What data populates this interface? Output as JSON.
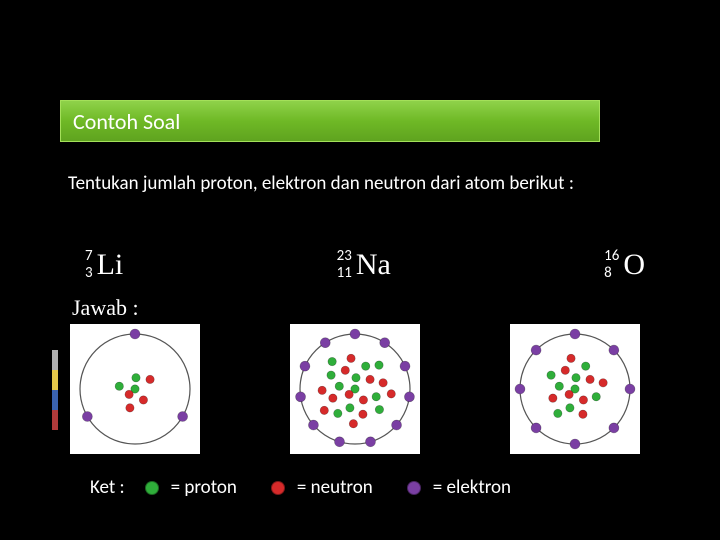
{
  "colors": {
    "page_bg": "#000000",
    "title_bar_gradient_top": "#8fd24a",
    "title_bar_gradient_mid": "#6fb926",
    "title_bar_gradient_bot": "#5fa31f",
    "text": "#ffffff",
    "proton": "#2fae3a",
    "neutron": "#d62a2a",
    "electron": "#7a3fa3",
    "shell_stroke": "#555555",
    "diagram_bg": "#ffffff",
    "strip": [
      "#b0b0b0",
      "#e5c74a",
      "#3a63b0",
      "#b03a3a"
    ]
  },
  "title": "Contoh Soal",
  "question": "Tentukan jumlah proton, elektron dan neutron dari atom berikut :",
  "answer_label": "Jawab :",
  "atoms": [
    {
      "symbol": "Li",
      "mass": "7",
      "atomic": "3",
      "protons": 3,
      "neutrons": 4,
      "shells": [
        2,
        1
      ]
    },
    {
      "symbol": "Na",
      "mass": "23",
      "atomic": "11",
      "protons": 11,
      "neutrons": 12,
      "shells": [
        2,
        8,
        1
      ]
    },
    {
      "symbol": "O",
      "mass": "16",
      "atomic": "8",
      "protons": 8,
      "neutrons": 8,
      "shells": [
        2,
        6
      ]
    }
  ],
  "legend": {
    "label": "Ket :",
    "items": [
      {
        "color": "#2fae3a",
        "text": "= proton"
      },
      {
        "color": "#d62a2a",
        "text": "= neutron"
      },
      {
        "color": "#7a3fa3",
        "text": "= elektron"
      }
    ]
  },
  "diagram_style": {
    "size": 130,
    "shell_base_r": 55,
    "nucleus_dot_r": 4.2,
    "electron_dot_r": 5,
    "shell_stroke_width": 1.2
  }
}
